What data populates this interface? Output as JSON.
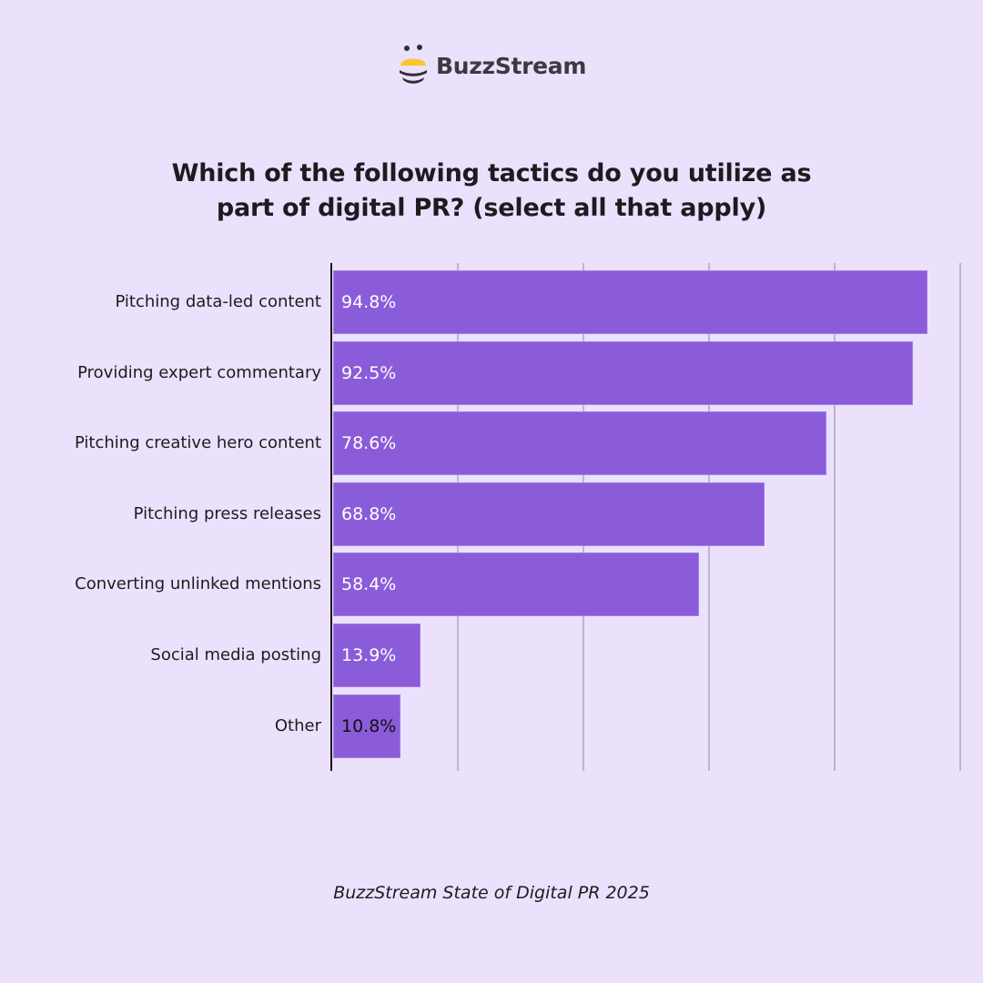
{
  "brand": {
    "name": "BuzzStream",
    "logo_icon": "bee-logo-icon",
    "colors": {
      "yellow": "#F9C62B",
      "dark": "#2F2E35"
    }
  },
  "title": {
    "line1": "Which of the following tactics do you utilize as",
    "line2": "part of digital PR? (select all that apply)"
  },
  "source": "BuzzStream State of Digital PR 2025",
  "colors": {
    "background": "#ECE1FD",
    "bar": "#8B5CD9",
    "gridline": "#BFB3CF",
    "axis": "#111111"
  },
  "chart_data": {
    "type": "bar",
    "orientation": "horizontal",
    "title": "Which of the following tactics do you utilize as part of digital PR? (select all that apply)",
    "xlabel": "",
    "ylabel": "",
    "xlim": [
      0,
      100
    ],
    "grid": true,
    "gridlines_at": [
      20,
      40,
      60,
      80,
      100
    ],
    "legend": null,
    "categories": [
      "Pitching data-led content",
      "Providing expert commentary",
      "Pitching creative hero content",
      "Pitching press releases",
      "Converting unlinked mentions",
      "Social media posting",
      "Other"
    ],
    "values": [
      94.8,
      92.5,
      78.6,
      68.8,
      58.4,
      13.9,
      10.8
    ],
    "value_labels": [
      "94.8%",
      "92.5%",
      "78.6%",
      "68.8%",
      "58.4%",
      "13.9%",
      "10.8%"
    ],
    "source": "BuzzStream State of Digital PR 2025"
  },
  "bars": [
    {
      "label": "Pitching data-led content",
      "value": 94.8,
      "text": "94.8%",
      "label_color": "light"
    },
    {
      "label": "Providing expert commentary",
      "value": 92.5,
      "text": "92.5%",
      "label_color": "light"
    },
    {
      "label": "Pitching creative hero content",
      "value": 78.6,
      "text": "78.6%",
      "label_color": "light"
    },
    {
      "label": "Pitching press releases",
      "value": 68.8,
      "text": "68.8%",
      "label_color": "light"
    },
    {
      "label": "Converting unlinked mentions",
      "value": 58.4,
      "text": "58.4%",
      "label_color": "light"
    },
    {
      "label": "Social media posting",
      "value": 13.9,
      "text": "13.9%",
      "label_color": "light"
    },
    {
      "label": "Other",
      "value": 10.8,
      "text": "10.8%",
      "label_color": "dark"
    }
  ]
}
